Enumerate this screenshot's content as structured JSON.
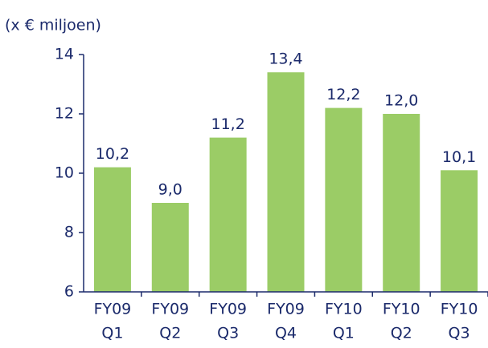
{
  "chart_data": {
    "type": "bar",
    "y_axis_label": "(x € miljoen)",
    "categories": [
      [
        "FY09",
        "Q1"
      ],
      [
        "FY09",
        "Q2"
      ],
      [
        "FY09",
        "Q3"
      ],
      [
        "FY09",
        "Q4"
      ],
      [
        "FY10",
        "Q1"
      ],
      [
        "FY10",
        "Q2"
      ],
      [
        "FY10",
        "Q3"
      ]
    ],
    "values": [
      10.2,
      9.0,
      11.2,
      13.4,
      12.2,
      12.0,
      10.1
    ],
    "value_labels": [
      "10,2",
      "9,0",
      "11,2",
      "13,4",
      "12,2",
      "12,0",
      "10,1"
    ],
    "color": "#9bcc66",
    "ylim": [
      6,
      14
    ],
    "yticks": [
      6,
      8,
      10,
      12,
      14
    ],
    "grid": false
  }
}
